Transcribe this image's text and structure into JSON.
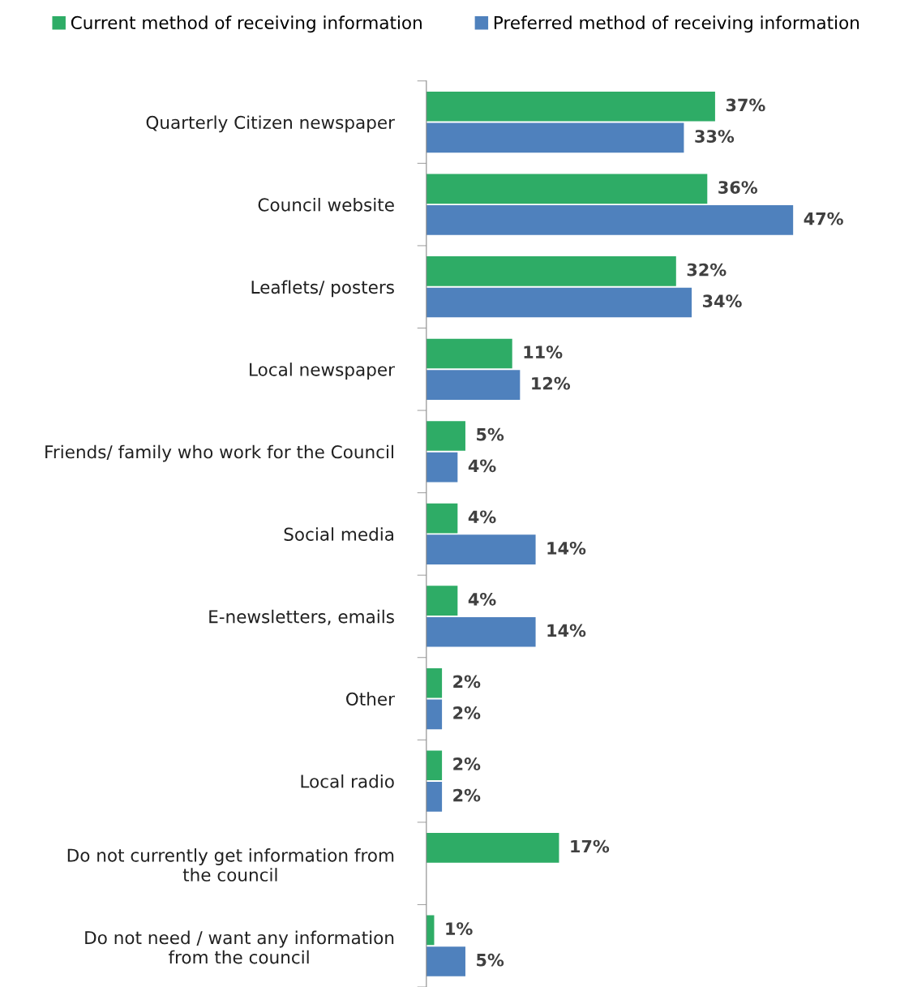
{
  "chart_data": {
    "type": "bar",
    "orientation": "horizontal",
    "legend": "top",
    "categories": [
      "Quarterly Citizen newspaper",
      "Council website",
      "Leaflets/ posters",
      "Local newspaper",
      "Friends/ family who work for the Council",
      "Social media",
      "E-newsletters, emails",
      "Other",
      "Local radio",
      "Do not currently get information from\nthe council",
      "Do not need / want any information\nfrom the council"
    ],
    "series": [
      {
        "name": "Current method of receiving information",
        "color": "#2eac66",
        "values": [
          37,
          36,
          32,
          11,
          5,
          4,
          4,
          2,
          2,
          17,
          1
        ],
        "value_labels": [
          "37%",
          "36%",
          "32%",
          "11%",
          "5%",
          "4%",
          "4%",
          "2%",
          "2%",
          "17%",
          "1%"
        ]
      },
      {
        "name": "Preferred method of receiving information",
        "color": "#4f81bd",
        "values": [
          33,
          47,
          34,
          12,
          4,
          14,
          14,
          2,
          2,
          null,
          5
        ],
        "value_labels": [
          "33%",
          "47%",
          "34%",
          "12%",
          "4%",
          "14%",
          "14%",
          "2%",
          "2%",
          null,
          "5%"
        ]
      }
    ]
  }
}
